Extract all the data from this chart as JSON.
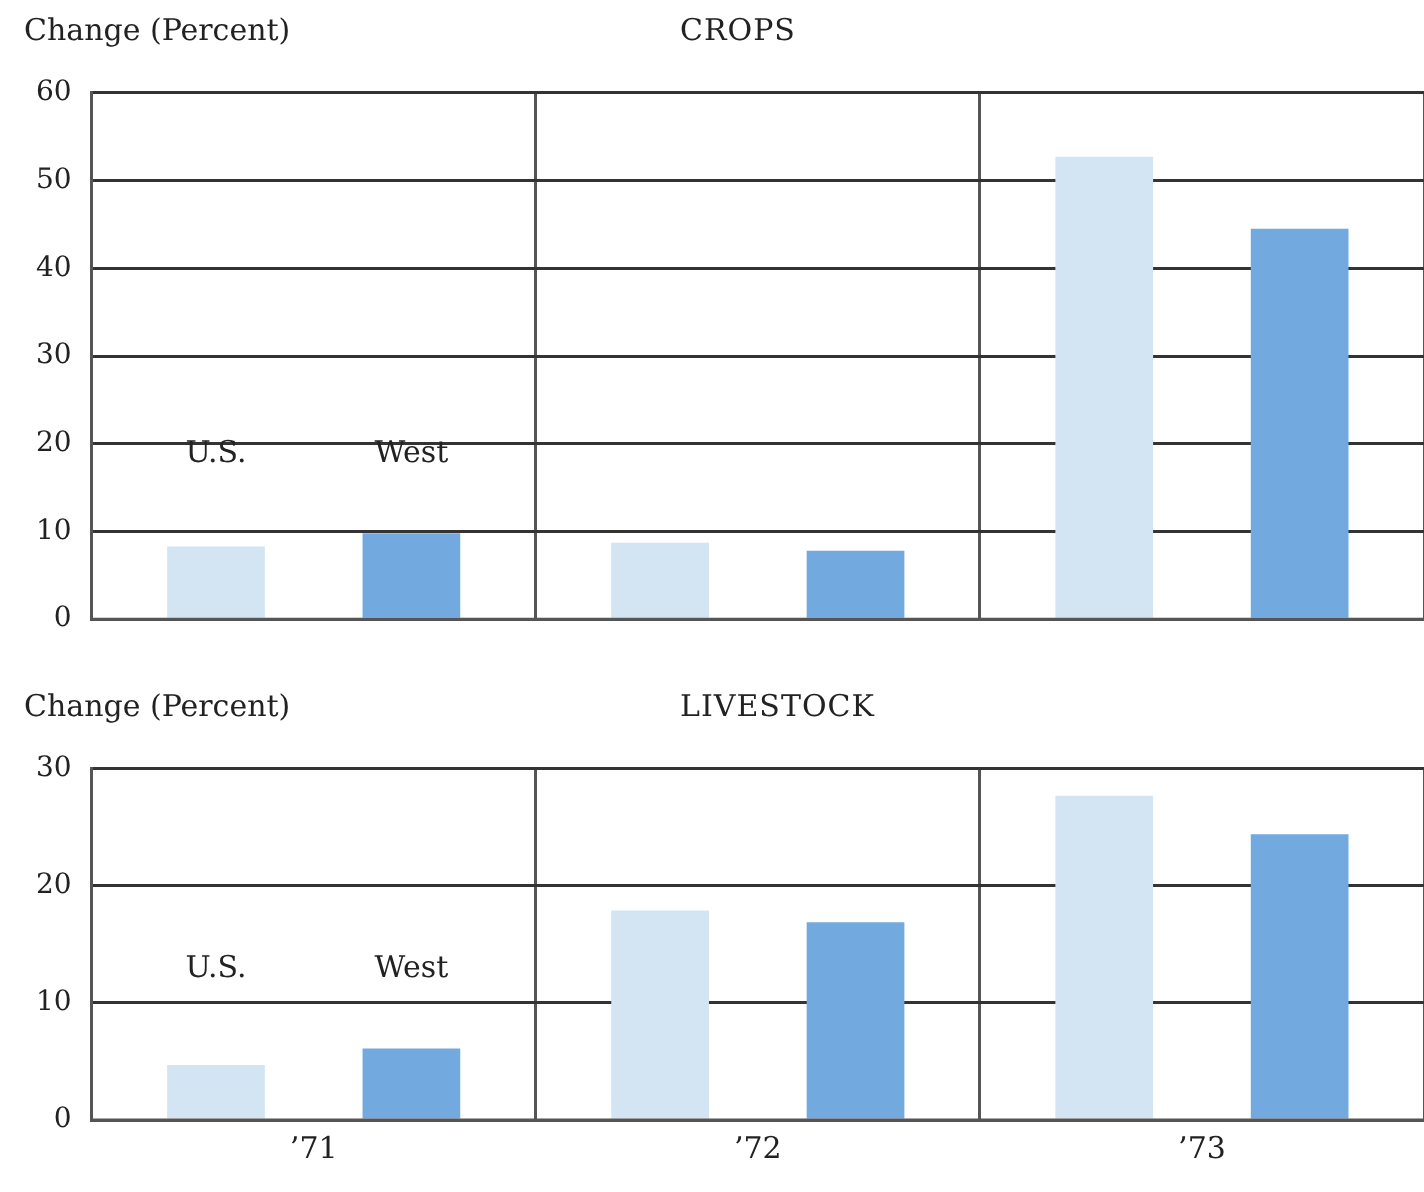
{
  "chart_data": [
    {
      "type": "bar",
      "title": "CROPS",
      "ylabel": "Change (Percent)",
      "categories": [
        null,
        null,
        null
      ],
      "series": [
        {
          "name": "U.S.",
          "color": "#d3e4f3",
          "values": [
            8.3,
            8.7,
            52.7
          ]
        },
        {
          "name": "West",
          "color": "#72aadf",
          "values": [
            9.8,
            7.8,
            44.5
          ]
        }
      ],
      "ylim": [
        0,
        60
      ],
      "yticks": [
        0,
        10,
        20,
        30,
        40,
        50,
        60
      ],
      "grid": true,
      "legend": false,
      "tick_labels": "y"
    },
    {
      "type": "bar",
      "title": "LIVESTOCK",
      "ylabel": "Change (Percent)",
      "categories": [
        "’71",
        "’72",
        "’73"
      ],
      "series": [
        {
          "name": "U.S.",
          "color": "#d3e4f3",
          "values": [
            4.7,
            17.9,
            27.7
          ]
        },
        {
          "name": "West",
          "color": "#72aadf",
          "values": [
            6.1,
            16.9,
            24.4
          ]
        }
      ],
      "ylim": [
        0,
        30
      ],
      "yticks": [
        0,
        10,
        20,
        30
      ],
      "grid": true,
      "legend": false
    }
  ]
}
